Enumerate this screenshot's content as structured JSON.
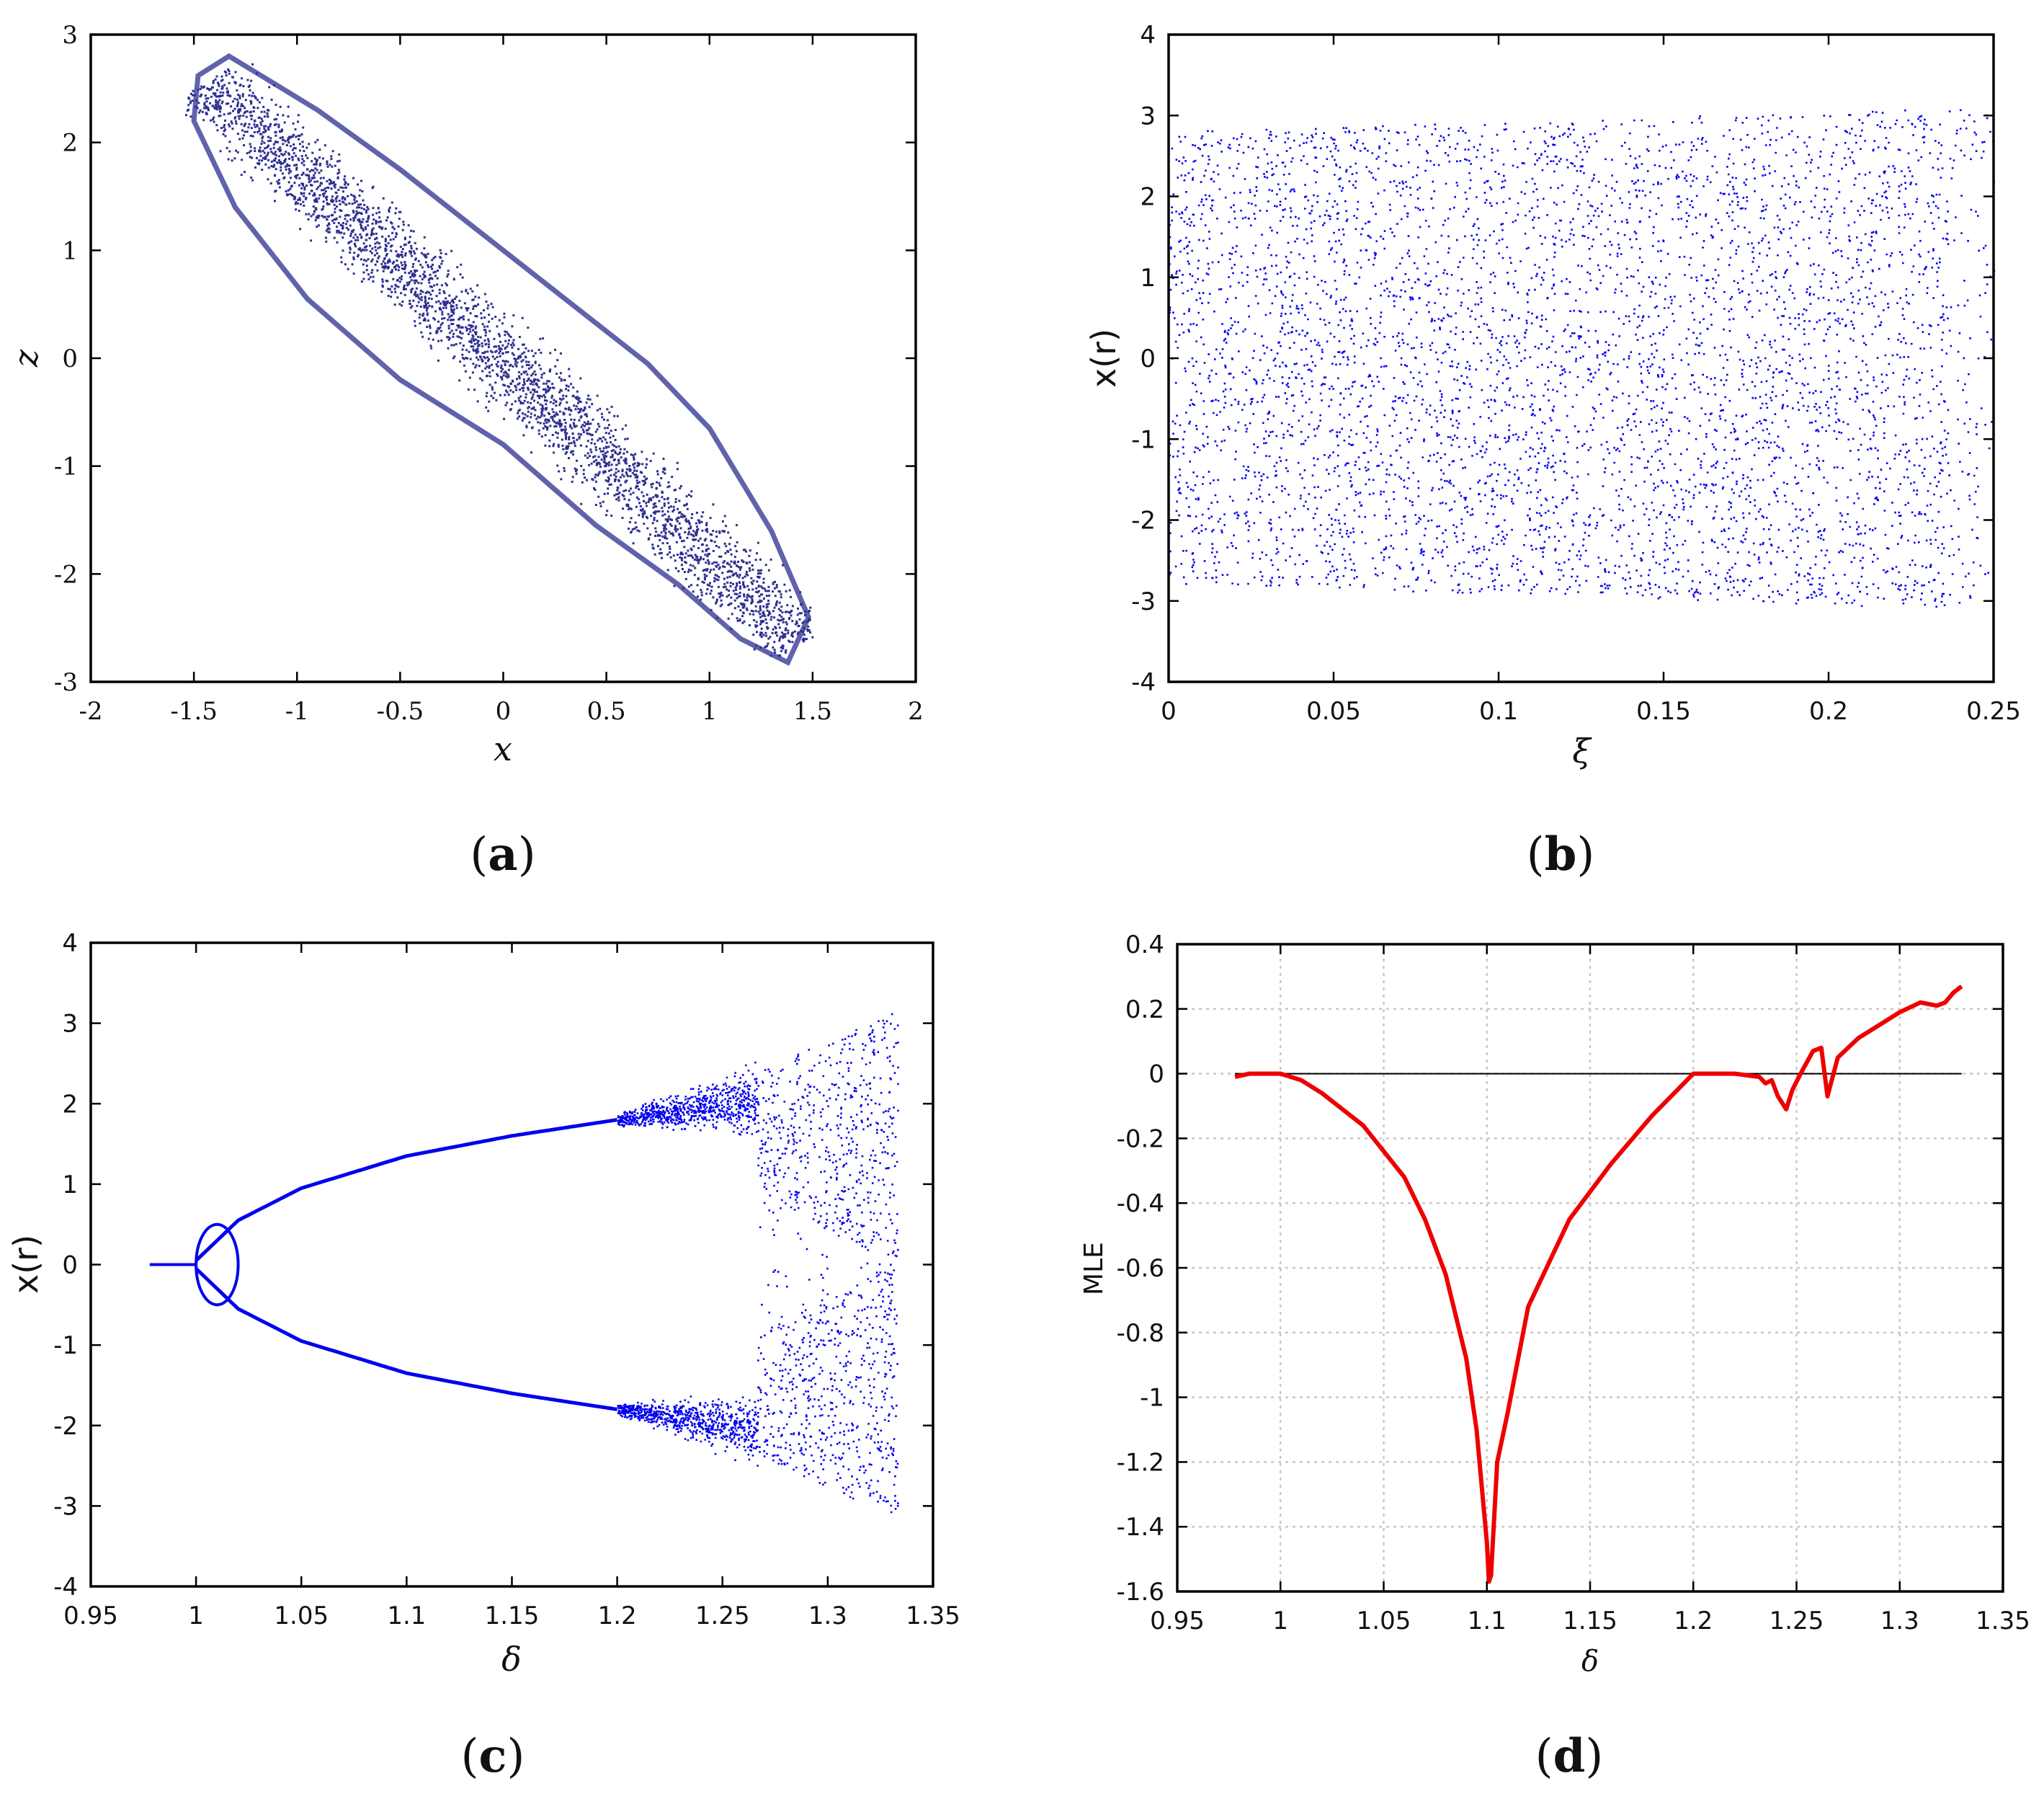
{
  "figure": {
    "panels": [
      "a",
      "b",
      "c",
      "d"
    ]
  },
  "chart_data": [
    {
      "id": "a",
      "type": "scatter",
      "caption": "(a)",
      "caption_letter": "a",
      "xlabel": "x",
      "ylabel": "z",
      "xlim": [
        -2,
        2
      ],
      "ylim": [
        -3,
        3
      ],
      "xticks": [
        -2,
        -1.5,
        -1,
        -0.5,
        0,
        0.5,
        1,
        1.5,
        2
      ],
      "yticks": [
        -3,
        -2,
        -1,
        0,
        1,
        2,
        3
      ],
      "xtick_labels": [
        "-2",
        "-1.5",
        "-1",
        "-0.5",
        "0",
        "0.5",
        "1",
        "1.5",
        "2"
      ],
      "ytick_labels": [
        "-3",
        "-2",
        "-1",
        "0",
        "1",
        "2",
        "3"
      ],
      "color": "#2b2f8f",
      "grid": false,
      "series": [
        {
          "name": "attractor outline",
          "x": [
            -1.33,
            -1.2,
            -0.9,
            -0.5,
            -0.1,
            0.3,
            0.7,
            1.0,
            1.3,
            1.48,
            1.38,
            1.15,
            0.85,
            0.45,
            0.0,
            -0.5,
            -0.95,
            -1.3,
            -1.5,
            -1.48
          ],
          "y": [
            2.8,
            2.65,
            2.3,
            1.75,
            1.15,
            0.55,
            -0.05,
            -0.65,
            -1.6,
            -2.4,
            -2.82,
            -2.6,
            -2.1,
            -1.55,
            -0.8,
            -0.2,
            0.55,
            1.4,
            2.2,
            2.62
          ]
        }
      ]
    },
    {
      "id": "b",
      "type": "scatter",
      "caption": "(b)",
      "caption_letter": "b",
      "xlabel": "ξ",
      "ylabel": "x(r)",
      "xlim": [
        0,
        0.25
      ],
      "ylim": [
        -4,
        4
      ],
      "xticks": [
        0,
        0.05,
        0.1,
        0.15,
        0.2,
        0.25
      ],
      "yticks": [
        -4,
        -3,
        -2,
        -1,
        0,
        1,
        2,
        3,
        4
      ],
      "xtick_labels": [
        "0",
        "0.05",
        "0.1",
        "0.15",
        "0.2",
        "0.25"
      ],
      "ytick_labels": [
        "-4",
        "-3",
        "-2",
        "-1",
        "0",
        "1",
        "2",
        "3",
        "4"
      ],
      "color": "#0000ee",
      "grid": false,
      "envelope": {
        "xi": [
          0,
          0.05,
          0.1,
          0.15,
          0.2,
          0.236
        ],
        "upper": [
          2.8,
          2.85,
          2.92,
          2.98,
          3.05,
          3.1
        ],
        "lower": [
          -2.8,
          -2.85,
          -2.92,
          -2.98,
          -3.05,
          -3.1
        ]
      }
    },
    {
      "id": "c",
      "type": "scatter",
      "caption": "(c)",
      "caption_letter": "c",
      "xlabel": "δ",
      "ylabel": "x(r)",
      "xlim": [
        0.95,
        1.35
      ],
      "ylim": [
        -4,
        4
      ],
      "xticks": [
        0.95,
        1,
        1.05,
        1.1,
        1.15,
        1.2,
        1.25,
        1.3,
        1.35
      ],
      "yticks": [
        -4,
        -3,
        -2,
        -1,
        0,
        1,
        2,
        3,
        4
      ],
      "xtick_labels": [
        "0.95",
        "1",
        "1.05",
        "1.1",
        "1.15",
        "1.2",
        "1.25",
        "1.3",
        "1.35"
      ],
      "ytick_labels": [
        "-4",
        "-3",
        "-2",
        "-1",
        "0",
        "1",
        "2",
        "3",
        "4"
      ],
      "color": "#0000ee",
      "grid": false,
      "branches": {
        "delta": [
          0.978,
          1.0,
          1.02,
          1.05,
          1.1,
          1.15,
          1.2
        ],
        "upper": [
          0,
          0.05,
          0.55,
          0.95,
          1.35,
          1.6,
          1.8
        ],
        "lower": [
          0,
          -0.05,
          -0.55,
          -0.95,
          -1.35,
          -1.6,
          -1.8
        ]
      },
      "chaos_start": 1.2,
      "chaos_end": 1.333
    },
    {
      "id": "d",
      "type": "line",
      "caption": "(d)",
      "caption_letter": "d",
      "xlabel": "δ",
      "ylabel": "MLE",
      "xlim": [
        0.95,
        1.35
      ],
      "ylim": [
        -1.6,
        0.4
      ],
      "xticks": [
        0.95,
        1,
        1.05,
        1.1,
        1.15,
        1.2,
        1.25,
        1.3,
        1.35
      ],
      "yticks": [
        -1.6,
        -1.4,
        -1.2,
        -1,
        -0.8,
        -0.6,
        -0.4,
        -0.2,
        0,
        0.2,
        0.4
      ],
      "xtick_labels": [
        "0.95",
        "1",
        "1.05",
        "1.1",
        "1.15",
        "1.2",
        "1.25",
        "1.3",
        "1.35"
      ],
      "ytick_labels": [
        "-1.6",
        "-1.4",
        "-1.2",
        "-1",
        "-0.8",
        "-0.6",
        "-0.4",
        "-0.2",
        "0",
        "0.2",
        "0.4"
      ],
      "color": "#ee0000",
      "grid": true,
      "zero_line": true,
      "series": [
        {
          "name": "MLE",
          "x": [
            0.978,
            0.985,
            1.0,
            1.01,
            1.02,
            1.04,
            1.06,
            1.07,
            1.08,
            1.09,
            1.095,
            1.1,
            1.101,
            1.102,
            1.105,
            1.11,
            1.12,
            1.14,
            1.16,
            1.18,
            1.2,
            1.22,
            1.232,
            1.235,
            1.238,
            1.241,
            1.245,
            1.248,
            1.252,
            1.258,
            1.262,
            1.265,
            1.27,
            1.28,
            1.29,
            1.3,
            1.31,
            1.318,
            1.322,
            1.326,
            1.33
          ],
          "y": [
            -0.01,
            0.0,
            0.0,
            -0.02,
            -0.06,
            -0.16,
            -0.32,
            -0.45,
            -0.62,
            -0.88,
            -1.1,
            -1.45,
            -1.57,
            -1.55,
            -1.2,
            -1.05,
            -0.72,
            -0.45,
            -0.28,
            -0.13,
            0.0,
            0.0,
            -0.01,
            -0.03,
            -0.02,
            -0.07,
            -0.11,
            -0.05,
            0.0,
            0.07,
            0.08,
            -0.07,
            0.05,
            0.11,
            0.15,
            0.19,
            0.22,
            0.21,
            0.22,
            0.25,
            0.27
          ]
        }
      ]
    }
  ]
}
